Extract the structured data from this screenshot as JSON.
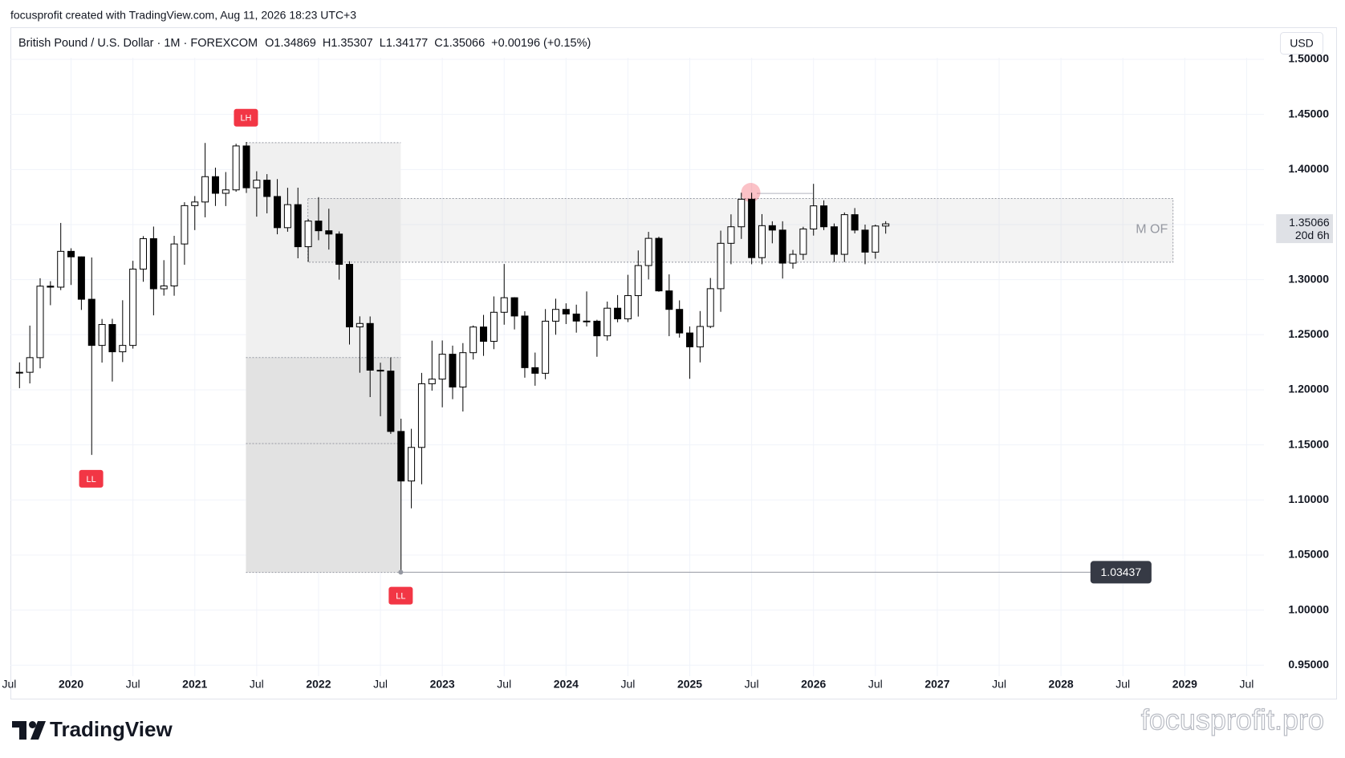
{
  "header": {
    "attribution": "focusprofit created with TradingView.com, Aug 11, 2026 18:23 UTC+3"
  },
  "chart_data": {
    "type": "candlestick",
    "symbol": "British Pound / U.S. Dollar · 1M · FOREXCOM",
    "ohlc_labels": [
      "O",
      "H",
      "L",
      "C"
    ],
    "change": "+0.00196 (+0.15%)",
    "currency": "USD",
    "x": [
      2019.5833,
      2019.6667,
      2019.75,
      2019.8333,
      2019.9167,
      2020,
      2020.0833,
      2020.1667,
      2020.25,
      2020.3333,
      2020.4167,
      2020.5,
      2020.5833,
      2020.6667,
      2020.75,
      2020.8333,
      2020.9167,
      2021,
      2021.0833,
      2021.1667,
      2021.25,
      2021.3333,
      2021.4167,
      2021.5,
      2021.5833,
      2021.6667,
      2021.75,
      2021.8333,
      2021.9167,
      2022,
      2022.0833,
      2022.1667,
      2022.25,
      2022.3333,
      2022.4167,
      2022.5,
      2022.5833,
      2022.6667,
      2022.75,
      2022.8333,
      2022.9167,
      2023,
      2023.0833,
      2023.1667,
      2023.25,
      2023.3333,
      2023.4167,
      2023.5,
      2023.5833,
      2023.6667,
      2023.75,
      2023.8333,
      2023.9167,
      2024,
      2024.0833,
      2024.1667,
      2024.25,
      2024.3333,
      2024.4167,
      2024.5,
      2024.5833,
      2024.6667,
      2024.75,
      2024.8333,
      2024.9167,
      2025,
      2025.0833,
      2025.1667,
      2025.25,
      2025.3333,
      2025.4167,
      2025.5,
      2025.5833,
      2025.6667,
      2025.75,
      2025.8333,
      2025.9167,
      2026,
      2026.0833,
      2026.1667,
      2026.25,
      2026.3333,
      2026.4167,
      2026.5,
      2026.5833
    ],
    "open": [
      1.2155,
      1.2159,
      1.2292,
      1.2941,
      1.2932,
      1.3257,
      1.3207,
      1.2822,
      1.2403,
      1.2593,
      1.2345,
      1.2403,
      1.3096,
      1.3372,
      1.2917,
      1.2943,
      1.3324,
      1.3672,
      1.3705,
      1.3935,
      1.3784,
      1.3815,
      1.4214,
      1.3834,
      1.3903,
      1.3755,
      1.3472,
      1.3681,
      1.3299,
      1.3532,
      1.3444,
      1.3414,
      1.3139,
      1.2571,
      1.2602,
      1.2178,
      1.217,
      1.1622,
      1.1172,
      1.1477,
      1.2055,
      1.2097,
      1.2323,
      1.2025,
      1.2337,
      1.257,
      1.244,
      1.2704,
      1.2836,
      1.267,
      1.2201,
      1.215,
      1.2623,
      1.273,
      1.2688,
      1.2624,
      1.2623,
      1.249,
      1.2741,
      1.2644,
      1.2855,
      1.3128,
      1.3375,
      1.2898,
      1.273,
      1.2516,
      1.239,
      1.2575,
      1.2918,
      1.333,
      1.348,
      1.373,
      1.32,
      1.349,
      1.345,
      1.315,
      1.323,
      1.346,
      1.367,
      1.348,
      1.323,
      1.359,
      1.345,
      1.325,
      1.34869
    ],
    "high": [
      1.2249,
      1.2583,
      1.3013,
      1.2986,
      1.3515,
      1.3285,
      1.321,
      1.3201,
      1.2643,
      1.2645,
      1.2813,
      1.3171,
      1.3395,
      1.3482,
      1.3177,
      1.3398,
      1.3703,
      1.3759,
      1.4241,
      1.4017,
      1.3977,
      1.4234,
      1.425,
      1.3984,
      1.3958,
      1.3913,
      1.3834,
      1.3835,
      1.355,
      1.3749,
      1.3644,
      1.3438,
      1.3167,
      1.2667,
      1.2666,
      1.2246,
      1.2294,
      1.1738,
      1.1646,
      1.2154,
      1.2446,
      1.2448,
      1.2401,
      1.2424,
      1.2584,
      1.268,
      1.2848,
      1.3142,
      1.2841,
      1.2713,
      1.2338,
      1.2733,
      1.2827,
      1.2785,
      1.2773,
      1.2893,
      1.2636,
      1.2801,
      1.286,
      1.3044,
      1.3265,
      1.3434,
      1.339,
      1.3048,
      1.2812,
      1.2575,
      1.2715,
      1.3015,
      1.3445,
      1.3593,
      1.3789,
      1.3789,
      1.3595,
      1.353,
      1.353,
      1.327,
      1.348,
      1.387,
      1.372,
      1.351,
      1.361,
      1.365,
      1.35,
      1.35,
      1.35307
    ],
    "low": [
      1.2015,
      1.2058,
      1.2195,
      1.2768,
      1.2905,
      1.2952,
      1.2725,
      1.1409,
      1.2247,
      1.2075,
      1.2252,
      1.2374,
      1.2981,
      1.2676,
      1.2855,
      1.2854,
      1.3135,
      1.345,
      1.3566,
      1.3669,
      1.3668,
      1.3798,
      1.3787,
      1.3572,
      1.3602,
      1.3412,
      1.3435,
      1.3194,
      1.3161,
      1.3358,
      1.3273,
      1.3,
      1.2411,
      1.2155,
      1.1934,
      1.176,
      1.16,
      1.03437,
      1.0924,
      1.1142,
      1.1992,
      1.1841,
      1.1915,
      1.1803,
      1.2275,
      1.2308,
      1.2369,
      1.2591,
      1.2548,
      1.211,
      1.2037,
      1.2096,
      1.25,
      1.2597,
      1.2519,
      1.2575,
      1.23,
      1.2446,
      1.2613,
      1.2615,
      1.2665,
      1.3002,
      1.289,
      1.2487,
      1.2474,
      1.21,
      1.2249,
      1.256,
      1.2708,
      1.314,
      1.337,
      1.314,
      1.314,
      1.333,
      1.301,
      1.31,
      1.318,
      1.34,
      1.345,
      1.316,
      1.316,
      1.342,
      1.314,
      1.319,
      1.34177
    ],
    "close": [
      1.2159,
      1.2292,
      1.2941,
      1.2932,
      1.3257,
      1.3207,
      1.2822,
      1.2403,
      1.2593,
      1.2345,
      1.2403,
      1.3096,
      1.3372,
      1.2917,
      1.2943,
      1.3324,
      1.3672,
      1.3705,
      1.3935,
      1.3784,
      1.3815,
      1.4214,
      1.3834,
      1.3903,
      1.3755,
      1.3472,
      1.3681,
      1.3299,
      1.3532,
      1.3444,
      1.3414,
      1.3139,
      1.2571,
      1.2602,
      1.2178,
      1.217,
      1.1622,
      1.1172,
      1.1477,
      1.2055,
      1.2097,
      1.2323,
      1.2025,
      1.2337,
      1.257,
      1.244,
      1.2704,
      1.2836,
      1.267,
      1.2201,
      1.215,
      1.2623,
      1.273,
      1.2688,
      1.2624,
      1.2623,
      1.249,
      1.2741,
      1.2644,
      1.2855,
      1.3128,
      1.3375,
      1.2898,
      1.273,
      1.2516,
      1.239,
      1.2575,
      1.2918,
      1.333,
      1.348,
      1.373,
      1.32,
      1.349,
      1.345,
      1.315,
      1.323,
      1.346,
      1.367,
      1.348,
      1.323,
      1.359,
      1.345,
      1.325,
      1.34869,
      1.35066
    ],
    "xlim": [
      2019.51,
      2029.64
    ],
    "xticks": [
      {
        "value": 2019.5,
        "label": "Jul"
      },
      2020,
      {
        "value": 2020.5,
        "label": "Jul"
      },
      2021,
      {
        "value": 2021.5,
        "label": "Jul"
      },
      2022,
      {
        "value": 2022.5,
        "label": "Jul"
      },
      2023,
      {
        "value": 2023.5,
        "label": "Jul"
      },
      2024,
      {
        "value": 2024.5,
        "label": "Jul"
      },
      2025,
      {
        "value": 2025.5,
        "label": "Jul"
      },
      2026,
      {
        "value": 2026.5,
        "label": "Jul"
      },
      2027,
      {
        "value": 2027.5,
        "label": "Jul"
      },
      2028,
      {
        "value": 2028.5,
        "label": "Jul"
      },
      2029,
      {
        "value": 2029.5,
        "label": "Jul"
      }
    ],
    "ylim": [
      0.94,
      1.5
    ],
    "yticks": [
      {
        "value": 0.95,
        "label": "0.95000"
      },
      {
        "value": 1.0,
        "label": "1.00000"
      },
      {
        "value": 1.05,
        "label": "1.05000"
      },
      {
        "value": 1.1,
        "label": "1.10000"
      },
      {
        "value": 1.15,
        "label": "1.15000"
      },
      {
        "value": 1.2,
        "label": "1.20000"
      },
      {
        "value": 1.25,
        "label": "1.25000"
      },
      {
        "value": 1.3,
        "label": "1.30000"
      },
      {
        "value": 1.35,
        "label": "1.35000"
      },
      {
        "value": 1.4,
        "label": "1.40000"
      },
      {
        "value": 1.45,
        "label": "1.45000"
      },
      {
        "value": 1.5,
        "label": "1.50000"
      }
    ],
    "grid": true,
    "colors": {
      "up": "#ffffff",
      "down": "#000000",
      "wick": "#000000"
    },
    "price_line": 1.03437,
    "countdown": "20d 6h",
    "annotations": [
      "LH",
      "LL",
      "LL"
    ],
    "zone_label": "M OF"
  },
  "footer": {
    "logo": "TradingView",
    "watermark": "focusprofit.pro"
  }
}
